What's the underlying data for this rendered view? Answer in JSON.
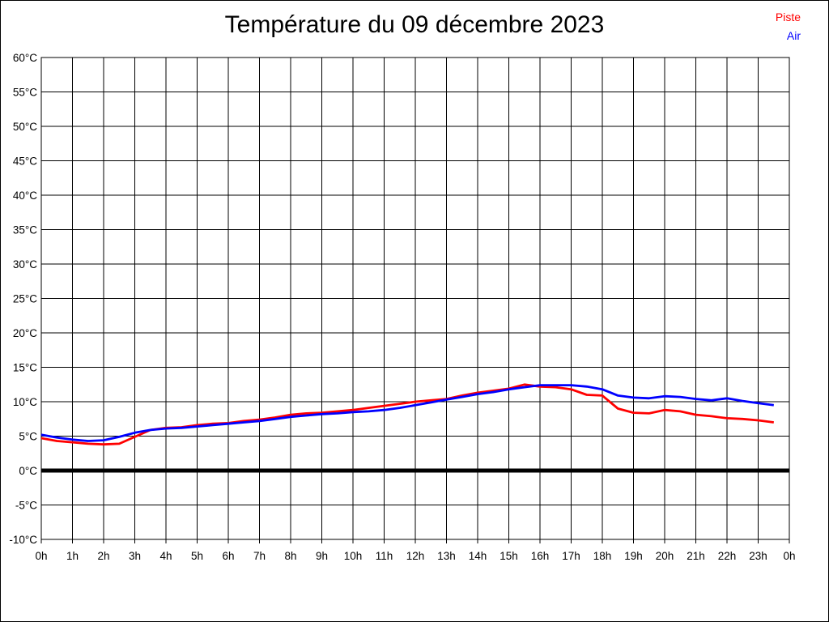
{
  "chart": {
    "title": "Température du 09 décembre 2023",
    "legend": [
      {
        "label": "Piste",
        "color": "#ff0000"
      },
      {
        "label": "Air",
        "color": "#0000ff"
      }
    ]
  },
  "chart_data": {
    "type": "line",
    "title": "Température du 09 décembre 2023",
    "xlabel": "",
    "ylabel": "",
    "xlim": [
      0,
      24
    ],
    "ylim": [
      -10,
      60
    ],
    "grid": true,
    "legend_position": "top-right",
    "zero_line": {
      "value": 0,
      "color": "#000000",
      "width": 5
    },
    "x_tick_values": [
      0,
      1,
      2,
      3,
      4,
      5,
      6,
      7,
      8,
      9,
      10,
      11,
      12,
      13,
      14,
      15,
      16,
      17,
      18,
      19,
      20,
      21,
      22,
      23,
      24
    ],
    "x_tick_labels": [
      "0h",
      "1h",
      "2h",
      "3h",
      "4h",
      "5h",
      "6h",
      "7h",
      "8h",
      "9h",
      "10h",
      "11h",
      "12h",
      "13h",
      "14h",
      "15h",
      "16h",
      "17h",
      "18h",
      "19h",
      "20h",
      "21h",
      "22h",
      "23h",
      "0h"
    ],
    "y_tick_values": [
      60,
      55,
      50,
      45,
      40,
      35,
      30,
      25,
      20,
      15,
      10,
      5,
      0,
      -5,
      -10
    ],
    "y_tick_labels": [
      "60°C",
      "55°C",
      "50°C",
      "45°C",
      "40°C",
      "35°C",
      "30°C",
      "25°C",
      "20°C",
      "15°C",
      "10°C",
      "5°C",
      "0°C",
      "-5°C",
      "-10°C"
    ],
    "x": [
      0,
      0.5,
      1,
      1.5,
      2,
      2.5,
      3,
      3.5,
      4,
      4.5,
      5,
      5.5,
      6,
      6.5,
      7,
      7.5,
      8,
      8.5,
      9,
      9.5,
      10,
      10.5,
      11,
      11.5,
      12,
      12.5,
      13,
      13.5,
      14,
      14.5,
      15,
      15.5,
      16,
      16.5,
      17,
      17.5,
      18,
      18.5,
      19,
      19.5,
      20,
      20.5,
      21,
      21.5,
      22,
      22.5,
      23,
      23.5
    ],
    "series": [
      {
        "name": "Piste",
        "color": "#ff0000",
        "values": [
          4.7,
          4.3,
          4.1,
          3.9,
          3.8,
          3.9,
          4.9,
          5.9,
          6.2,
          6.3,
          6.6,
          6.8,
          6.9,
          7.2,
          7.4,
          7.7,
          8.1,
          8.3,
          8.4,
          8.6,
          8.8,
          9.1,
          9.4,
          9.7,
          10.0,
          10.2,
          10.4,
          10.9,
          11.3,
          11.6,
          11.9,
          12.5,
          12.2,
          12.1,
          11.8,
          11.0,
          10.9,
          9.0,
          8.4,
          8.3,
          8.8,
          8.6,
          8.1,
          7.9,
          7.6,
          7.5,
          7.3,
          7.0
        ]
      },
      {
        "name": "Air",
        "color": "#0000ff",
        "values": [
          5.2,
          4.8,
          4.5,
          4.3,
          4.4,
          4.9,
          5.5,
          5.9,
          6.1,
          6.2,
          6.4,
          6.6,
          6.8,
          7.0,
          7.2,
          7.5,
          7.8,
          8.0,
          8.2,
          8.3,
          8.5,
          8.6,
          8.8,
          9.1,
          9.5,
          9.9,
          10.3,
          10.7,
          11.1,
          11.4,
          11.8,
          12.1,
          12.4,
          12.4,
          12.4,
          12.2,
          11.8,
          10.9,
          10.6,
          10.5,
          10.8,
          10.7,
          10.4,
          10.2,
          10.5,
          10.1,
          9.8,
          9.5
        ]
      }
    ]
  }
}
